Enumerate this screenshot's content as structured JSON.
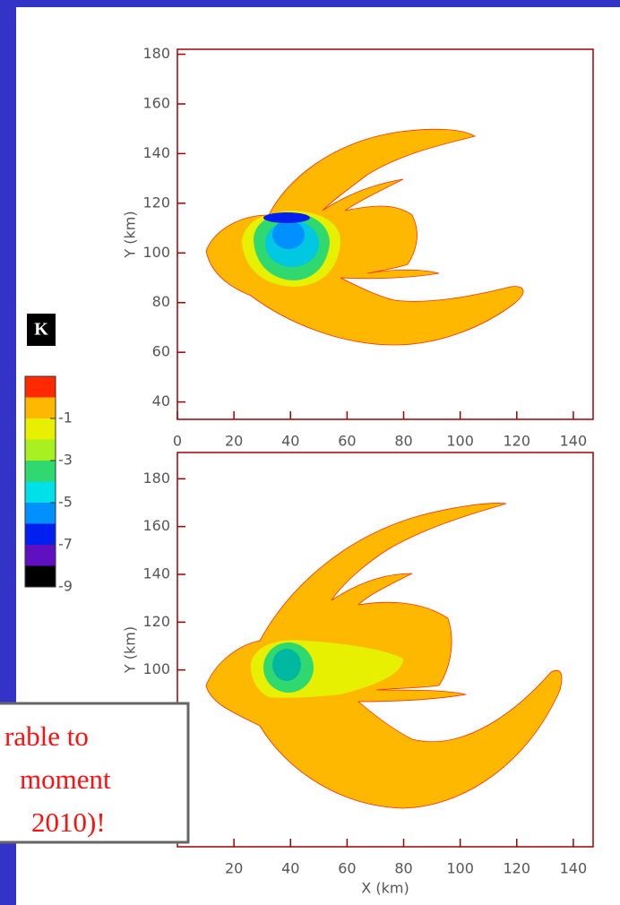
{
  "plots": [
    {
      "ylabel": "Y (km)",
      "xlim": [
        0,
        147
      ],
      "xticks": [
        0,
        20,
        40,
        60,
        80,
        100,
        120,
        140
      ],
      "ylim": [
        33,
        182
      ],
      "yticks": [
        40,
        60,
        80,
        100,
        120,
        140,
        160,
        180
      ]
    },
    {
      "ylabel": "Y (km)",
      "xlabel": "X (km)",
      "xlim": [
        0,
        147
      ],
      "xticks": [
        20,
        40,
        60,
        80,
        100,
        120,
        140
      ],
      "ylim": [
        26,
        191
      ],
      "yticks": [
        100,
        120,
        140,
        160,
        180
      ]
    }
  ],
  "colorbar": {
    "title": "K",
    "lim": [
      1,
      -9
    ],
    "ticks": [
      -1,
      -3,
      -5,
      -7,
      -9
    ],
    "colors": [
      "#ff2a00",
      "#ffb800",
      "#e6f000",
      "#a8f020",
      "#30d870",
      "#00e0e8",
      "#0090ff",
      "#0020f0",
      "#6010c0",
      "#000000"
    ]
  },
  "callout": {
    "lines": [
      "rable to",
      "moment",
      "2010)!"
    ]
  }
}
